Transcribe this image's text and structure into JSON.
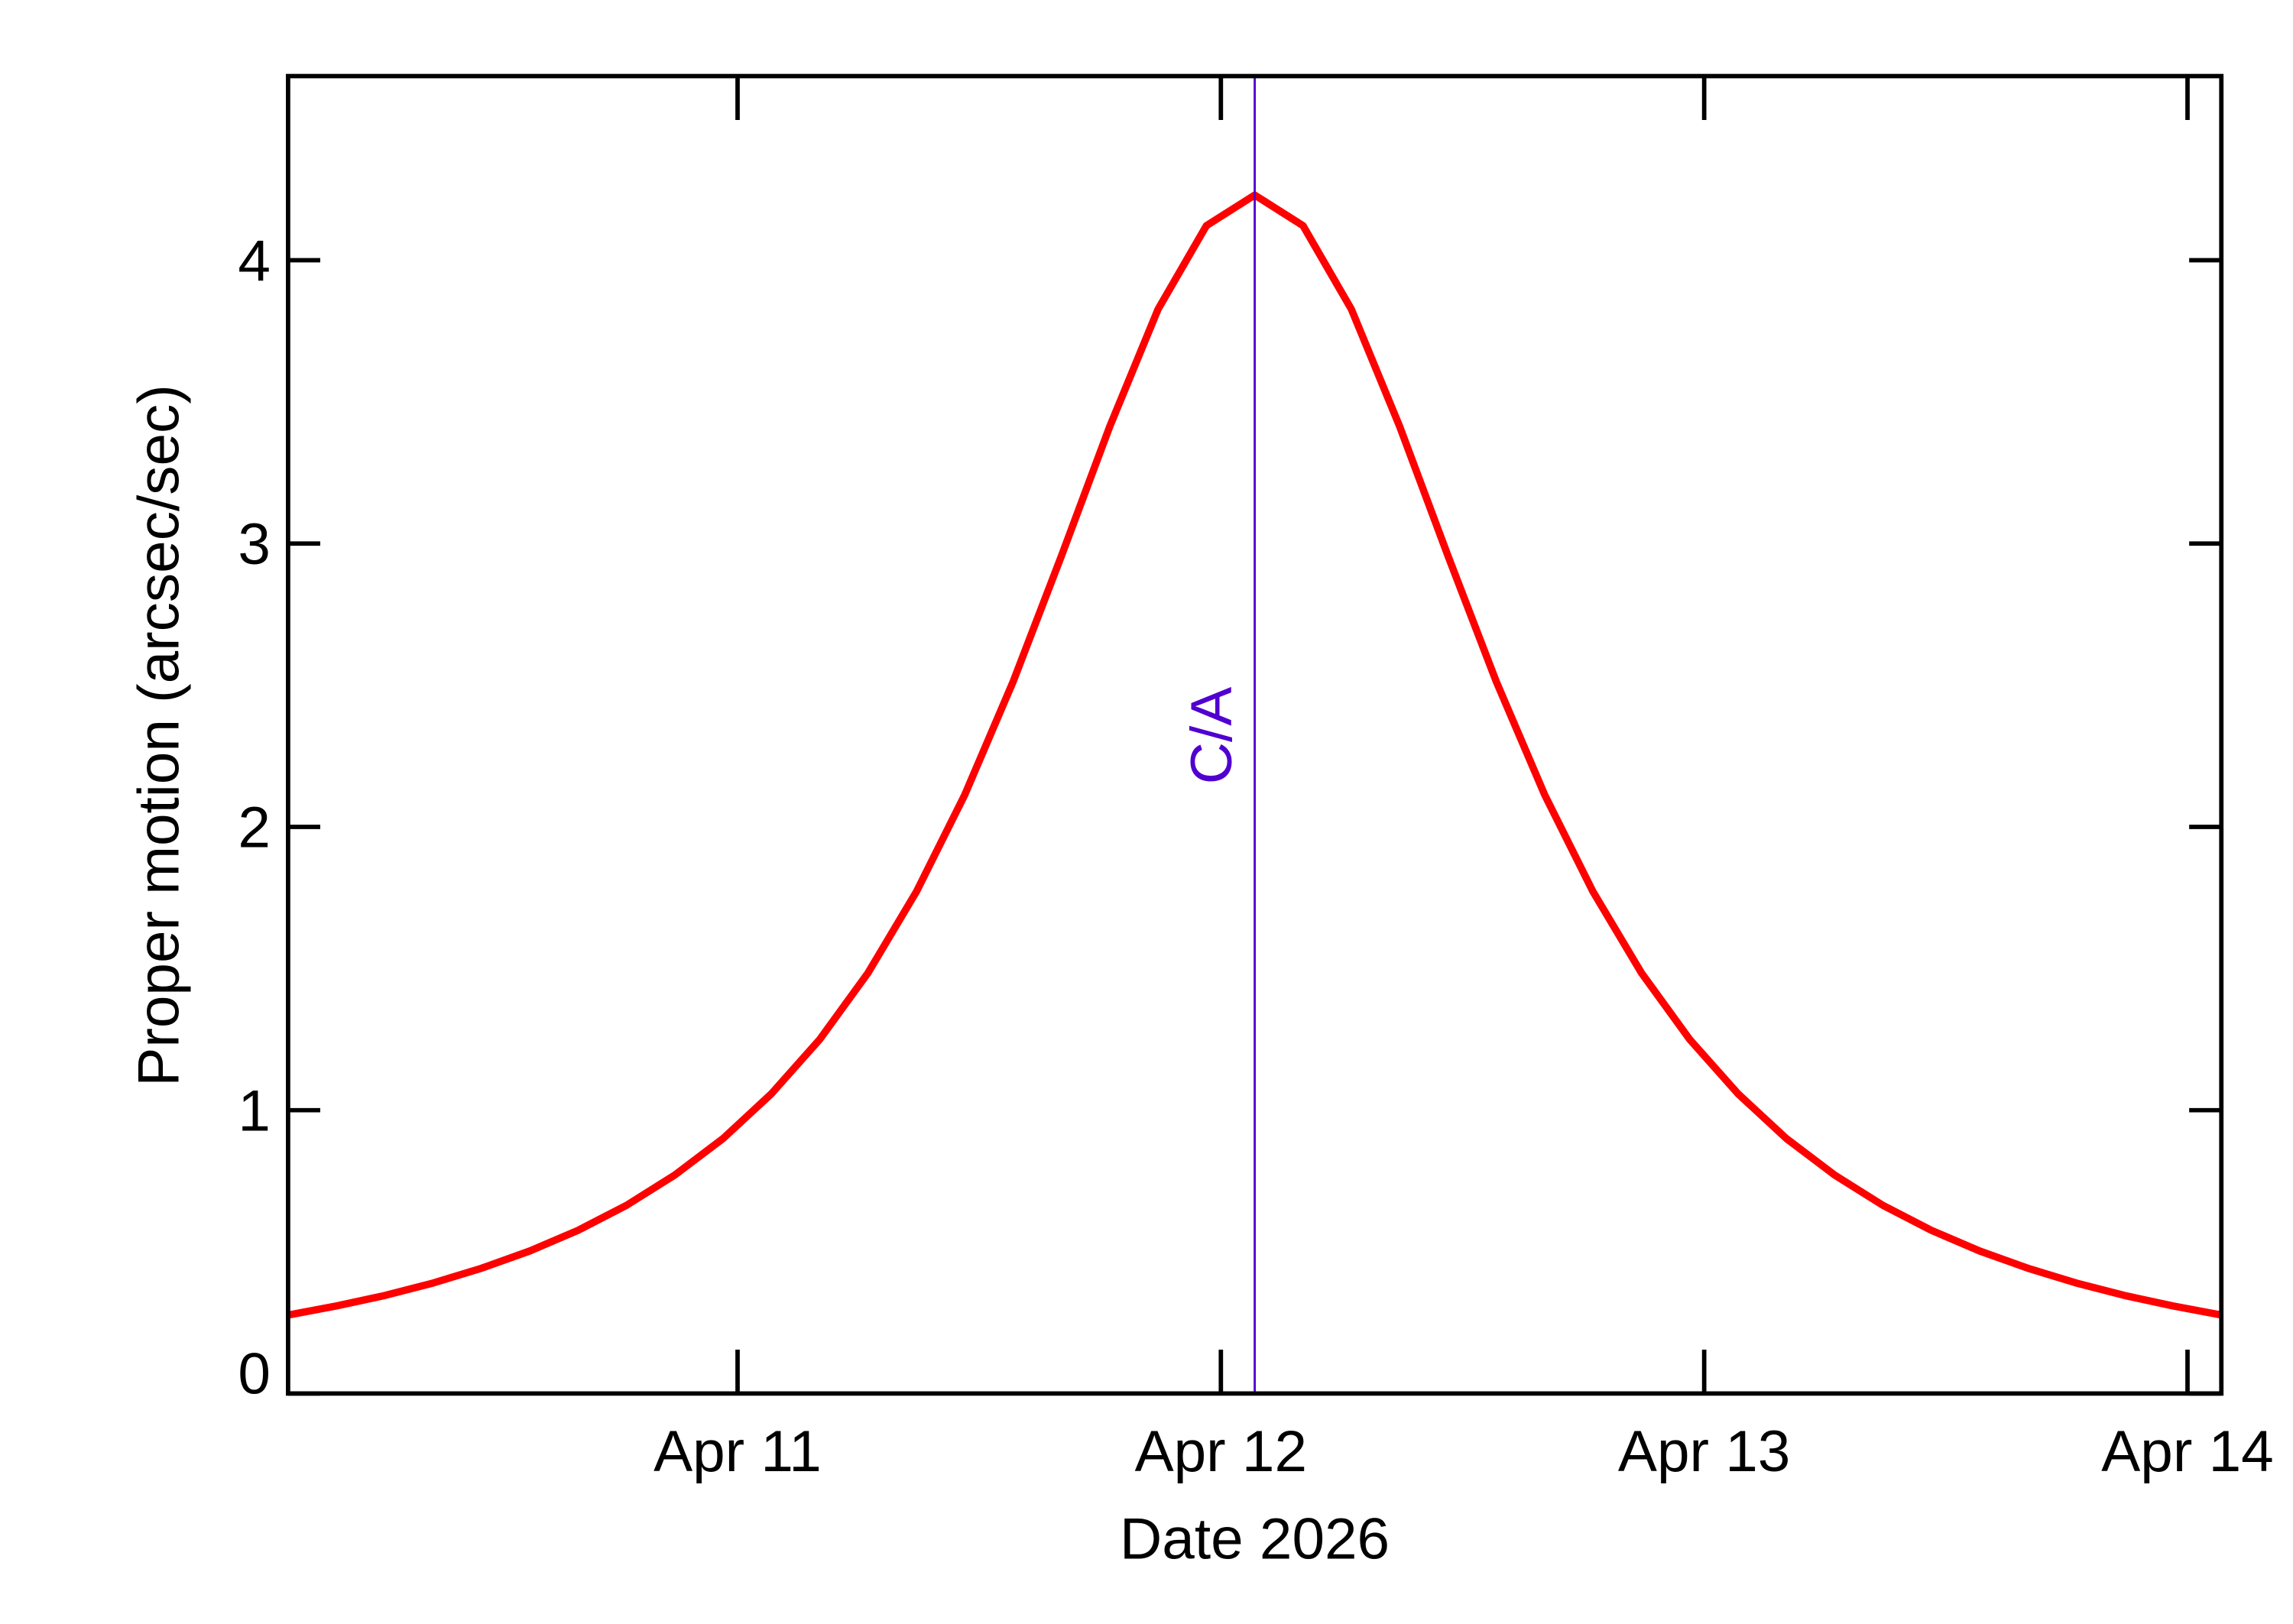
{
  "chart_data": {
    "type": "line",
    "xlabel": "Date 2026",
    "ylabel": "Proper motion (arcsec/sec)",
    "x": [
      10.07,
      10.17,
      10.27,
      10.37,
      10.47,
      10.57,
      10.67,
      10.77,
      10.87,
      10.97,
      11.07,
      11.17,
      11.27,
      11.37,
      11.47,
      11.57,
      11.67,
      11.77,
      11.87,
      11.97,
      12.07,
      12.17,
      12.27,
      12.37,
      12.47,
      12.57,
      12.67,
      12.77,
      12.87,
      12.97,
      13.07,
      13.17,
      13.27,
      13.37,
      13.47,
      13.57,
      13.67,
      13.77,
      13.87,
      13.97,
      14.07
    ],
    "series": [
      {
        "name": "Proper motion",
        "color": "#ff0000",
        "values": [
          0.277,
          0.309,
          0.346,
          0.39,
          0.442,
          0.503,
          0.576,
          0.664,
          0.771,
          0.9,
          1.058,
          1.25,
          1.485,
          1.771,
          2.113,
          2.512,
          2.956,
          3.413,
          3.827,
          4.122,
          4.23,
          4.122,
          3.827,
          3.413,
          2.956,
          2.512,
          2.113,
          1.771,
          1.485,
          1.25,
          1.058,
          0.9,
          0.771,
          0.664,
          0.576,
          0.503,
          0.442,
          0.39,
          0.346,
          0.309,
          0.277
        ]
      }
    ],
    "xlim": [
      10.07,
      14.07
    ],
    "xticks": [
      {
        "value": 11,
        "label": "Apr 11"
      },
      {
        "value": 12,
        "label": "Apr 12"
      },
      {
        "value": 13,
        "label": "Apr 13"
      },
      {
        "value": 14,
        "label": "Apr 14"
      }
    ],
    "ylim": [
      0,
      4.65
    ],
    "yticks": [
      0,
      1,
      2,
      3,
      4
    ],
    "annotation": {
      "x": 12.07,
      "label": "C/A",
      "color": "#5000d0"
    }
  }
}
